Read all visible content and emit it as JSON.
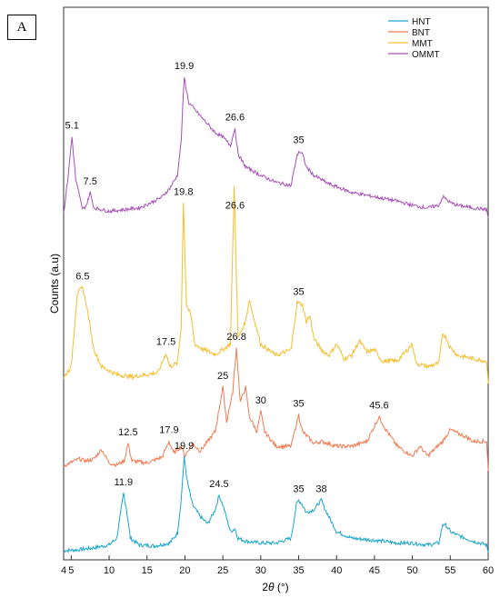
{
  "panel_label": "A",
  "chart_data": {
    "type": "line",
    "xlabel_prefix": "2",
    "xlabel_theta": "θ",
    "xlabel_suffix": " (°)",
    "ylabel": "Counts (a.u)",
    "xlim": [
      4,
      60
    ],
    "xticks": [
      5,
      10,
      15,
      20,
      25,
      30,
      35,
      40,
      45,
      50,
      55,
      60
    ],
    "y_tick_labels": false,
    "legend_position": "top-right",
    "series": [
      {
        "name": "HNT",
        "color": "#1aa5cc",
        "points": [
          [
            4,
            0.02
          ],
          [
            6,
            0.03
          ],
          [
            8,
            0.05
          ],
          [
            10,
            0.08
          ],
          [
            11,
            0.15
          ],
          [
            11.5,
            0.4
          ],
          [
            11.9,
            0.62
          ],
          [
            12.3,
            0.45
          ],
          [
            12.8,
            0.15
          ],
          [
            14,
            0.08
          ],
          [
            16,
            0.07
          ],
          [
            18,
            0.1
          ],
          [
            19,
            0.2
          ],
          [
            19.5,
            0.55
          ],
          [
            19.9,
            1.0
          ],
          [
            20.3,
            0.75
          ],
          [
            21,
            0.5
          ],
          [
            22,
            0.38
          ],
          [
            23,
            0.3
          ],
          [
            24,
            0.45
          ],
          [
            24.5,
            0.6
          ],
          [
            25,
            0.5
          ],
          [
            26,
            0.22
          ],
          [
            26.6,
            0.25
          ],
          [
            27,
            0.15
          ],
          [
            28,
            0.12
          ],
          [
            30,
            0.1
          ],
          [
            32,
            0.1
          ],
          [
            34,
            0.15
          ],
          [
            34.7,
            0.5
          ],
          [
            35,
            0.55
          ],
          [
            35.5,
            0.5
          ],
          [
            36,
            0.42
          ],
          [
            37,
            0.45
          ],
          [
            38,
            0.55
          ],
          [
            38.5,
            0.45
          ],
          [
            40,
            0.22
          ],
          [
            42,
            0.15
          ],
          [
            45,
            0.13
          ],
          [
            48,
            0.1
          ],
          [
            50,
            0.1
          ],
          [
            52,
            0.08
          ],
          [
            53.5,
            0.1
          ],
          [
            54,
            0.3
          ],
          [
            54.5,
            0.28
          ],
          [
            55,
            0.22
          ],
          [
            56,
            0.18
          ],
          [
            58,
            0.12
          ],
          [
            59.8,
            0.08
          ],
          [
            60,
            0.0
          ]
        ]
      },
      {
        "name": "BNT",
        "color": "#f07a52",
        "points": [
          [
            4,
            0.05
          ],
          [
            6,
            0.12
          ],
          [
            7,
            0.1
          ],
          [
            8,
            0.12
          ],
          [
            9,
            0.22
          ],
          [
            10,
            0.08
          ],
          [
            11,
            0.06
          ],
          [
            12,
            0.1
          ],
          [
            12.5,
            0.28
          ],
          [
            13,
            0.1
          ],
          [
            15,
            0.08
          ],
          [
            17,
            0.14
          ],
          [
            17.9,
            0.3
          ],
          [
            18.5,
            0.18
          ],
          [
            19.5,
            0.25
          ],
          [
            20,
            0.15
          ],
          [
            21,
            0.28
          ],
          [
            22,
            0.2
          ],
          [
            23,
            0.3
          ],
          [
            24,
            0.4
          ],
          [
            25,
            0.85
          ],
          [
            25.5,
            0.5
          ],
          [
            26.3,
            0.8
          ],
          [
            26.8,
            1.25
          ],
          [
            27.3,
            0.7
          ],
          [
            28,
            0.85
          ],
          [
            28.5,
            0.55
          ],
          [
            29.5,
            0.4
          ],
          [
            30,
            0.6
          ],
          [
            30.5,
            0.4
          ],
          [
            32,
            0.25
          ],
          [
            34,
            0.25
          ],
          [
            35,
            0.57
          ],
          [
            35.5,
            0.4
          ],
          [
            37,
            0.28
          ],
          [
            38,
            0.3
          ],
          [
            40,
            0.25
          ],
          [
            42,
            0.25
          ],
          [
            44,
            0.3
          ],
          [
            45.6,
            0.55
          ],
          [
            46.5,
            0.42
          ],
          [
            48,
            0.25
          ],
          [
            50,
            0.15
          ],
          [
            51,
            0.25
          ],
          [
            52,
            0.15
          ],
          [
            54,
            0.3
          ],
          [
            55,
            0.42
          ],
          [
            56,
            0.38
          ],
          [
            57,
            0.35
          ],
          [
            58,
            0.3
          ],
          [
            59.8,
            0.3
          ],
          [
            60,
            0.0
          ]
        ]
      },
      {
        "name": "MMT",
        "color": "#f5be2e",
        "points": [
          [
            4,
            0.05
          ],
          [
            5,
            0.15
          ],
          [
            5.8,
            0.8
          ],
          [
            6.5,
            0.85
          ],
          [
            7,
            0.7
          ],
          [
            8,
            0.3
          ],
          [
            9,
            0.15
          ],
          [
            11,
            0.08
          ],
          [
            13,
            0.06
          ],
          [
            15,
            0.08
          ],
          [
            16.5,
            0.1
          ],
          [
            17.5,
            0.27
          ],
          [
            18,
            0.15
          ],
          [
            19,
            0.18
          ],
          [
            19.5,
            0.5
          ],
          [
            19.8,
            1.6
          ],
          [
            20.2,
            0.7
          ],
          [
            20.8,
            0.6
          ],
          [
            21.3,
            0.35
          ],
          [
            22.5,
            0.3
          ],
          [
            24,
            0.26
          ],
          [
            25,
            0.3
          ],
          [
            26,
            0.35
          ],
          [
            26.5,
            1.75
          ],
          [
            27,
            0.4
          ],
          [
            28,
            0.55
          ],
          [
            28.5,
            0.75
          ],
          [
            29,
            0.6
          ],
          [
            30,
            0.35
          ],
          [
            32,
            0.25
          ],
          [
            34,
            0.3
          ],
          [
            34.8,
            0.72
          ],
          [
            35.5,
            0.7
          ],
          [
            36,
            0.55
          ],
          [
            36.5,
            0.6
          ],
          [
            37,
            0.4
          ],
          [
            38,
            0.3
          ],
          [
            39,
            0.25
          ],
          [
            40,
            0.35
          ],
          [
            41,
            0.22
          ],
          [
            42,
            0.25
          ],
          [
            43,
            0.38
          ],
          [
            44,
            0.28
          ],
          [
            45,
            0.3
          ],
          [
            46,
            0.2
          ],
          [
            48,
            0.2
          ],
          [
            50,
            0.35
          ],
          [
            50.5,
            0.18
          ],
          [
            52,
            0.15
          ],
          [
            53.5,
            0.18
          ],
          [
            54,
            0.45
          ],
          [
            54.5,
            0.4
          ],
          [
            55,
            0.32
          ],
          [
            56,
            0.25
          ],
          [
            58,
            0.22
          ],
          [
            59.8,
            0.2
          ],
          [
            60,
            0.0
          ]
        ]
      },
      {
        "name": "OMMT",
        "color": "#a64fb8",
        "points": [
          [
            4,
            0.05
          ],
          [
            4.6,
            0.5
          ],
          [
            5.1,
            0.95
          ],
          [
            5.6,
            0.45
          ],
          [
            6.5,
            0.1
          ],
          [
            7,
            0.15
          ],
          [
            7.5,
            0.3
          ],
          [
            8,
            0.12
          ],
          [
            10,
            0.08
          ],
          [
            12,
            0.1
          ],
          [
            14,
            0.12
          ],
          [
            16,
            0.2
          ],
          [
            17,
            0.25
          ],
          [
            18,
            0.35
          ],
          [
            19,
            0.5
          ],
          [
            19.5,
            0.9
          ],
          [
            19.9,
            1.65
          ],
          [
            20.5,
            1.35
          ],
          [
            21,
            1.3
          ],
          [
            22,
            1.2
          ],
          [
            23,
            1.1
          ],
          [
            24,
            1.0
          ],
          [
            25,
            0.95
          ],
          [
            26,
            0.85
          ],
          [
            26.6,
            1.05
          ],
          [
            27,
            0.75
          ],
          [
            28,
            0.6
          ],
          [
            29,
            0.55
          ],
          [
            30,
            0.5
          ],
          [
            32,
            0.42
          ],
          [
            34,
            0.38
          ],
          [
            34.7,
            0.7
          ],
          [
            35,
            0.78
          ],
          [
            35.5,
            0.75
          ],
          [
            36,
            0.6
          ],
          [
            37,
            0.5
          ],
          [
            39,
            0.4
          ],
          [
            42,
            0.3
          ],
          [
            45,
            0.25
          ],
          [
            48,
            0.2
          ],
          [
            50,
            0.15
          ],
          [
            52,
            0.12
          ],
          [
            53.5,
            0.15
          ],
          [
            54,
            0.25
          ],
          [
            54.5,
            0.22
          ],
          [
            55,
            0.18
          ],
          [
            56,
            0.15
          ],
          [
            58,
            0.12
          ],
          [
            59.8,
            0.1
          ],
          [
            60,
            0.0
          ]
        ]
      }
    ],
    "annotations": [
      {
        "text": "11.9",
        "x": 11.9,
        "series": "HNT"
      },
      {
        "text": "19.9",
        "x": 19.9,
        "series": "HNT"
      },
      {
        "text": "24.5",
        "x": 24.5,
        "series": "HNT"
      },
      {
        "text": "35",
        "x": 35,
        "series": "HNT"
      },
      {
        "text": "38",
        "x": 38,
        "series": "HNT"
      },
      {
        "text": "12.5",
        "x": 12.5,
        "series": "BNT"
      },
      {
        "text": "17.9",
        "x": 17.9,
        "series": "BNT"
      },
      {
        "text": "25",
        "x": 25,
        "series": "BNT"
      },
      {
        "text": "26.8",
        "x": 26.8,
        "series": "BNT"
      },
      {
        "text": "30",
        "x": 30,
        "series": "BNT"
      },
      {
        "text": "35",
        "x": 35,
        "series": "BNT"
      },
      {
        "text": "45.6",
        "x": 45.6,
        "series": "BNT"
      },
      {
        "text": "6.5",
        "x": 6.5,
        "series": "MMT"
      },
      {
        "text": "17.5",
        "x": 17.5,
        "series": "MMT"
      },
      {
        "text": "19.8",
        "x": 19.8,
        "series": "MMT"
      },
      {
        "text": "26.6",
        "x": 26.6,
        "series": "MMT"
      },
      {
        "text": "35",
        "x": 35,
        "series": "MMT"
      },
      {
        "text": "5.1",
        "x": 5.1,
        "series": "OMMT"
      },
      {
        "text": "7.5",
        "x": 7.5,
        "series": "OMMT"
      },
      {
        "text": "19.9",
        "x": 19.9,
        "series": "OMMT"
      },
      {
        "text": "26.6",
        "x": 26.6,
        "series": "OMMT"
      },
      {
        "text": "35",
        "x": 35,
        "series": "OMMT"
      }
    ]
  }
}
